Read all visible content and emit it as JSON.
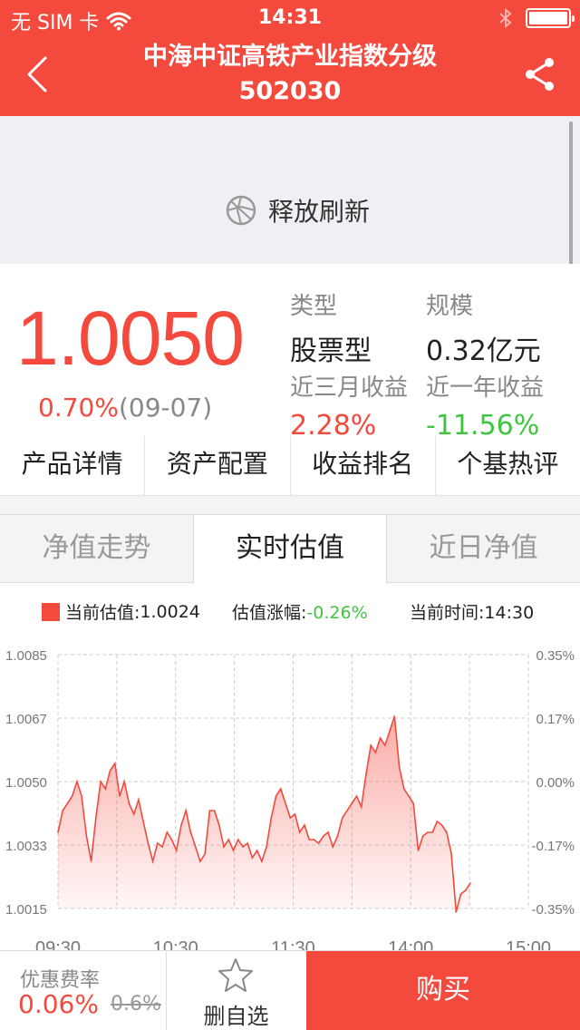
{
  "status_bar": {
    "carrier": "无 SIM 卡",
    "time": "14:31",
    "wifi_icon": "wifi-icon",
    "bluetooth_icon": "bluetooth-icon",
    "battery_icon": "battery-icon"
  },
  "nav": {
    "title": "中海中证高铁产业指数分级",
    "code": "502030",
    "back_icon": "chevron-left-icon",
    "share_icon": "share-icon"
  },
  "refresh": {
    "label": "释放刷新",
    "icon": "refresh-spinner-icon"
  },
  "summary": {
    "nav_value": "1.0050",
    "change_pct": "0.70%",
    "change_date": "(09-07)",
    "type_label": "类型",
    "type_value": "股票型",
    "scale_label": "规模",
    "scale_value": "0.32亿元",
    "three_month_label": "近三月收益",
    "three_month_value": "2.28%",
    "one_year_label": "近一年收益",
    "one_year_value": "-11.56%"
  },
  "links": [
    "产品详情",
    "资产配置",
    "收益排名",
    "个基热评"
  ],
  "chart_tabs": [
    "净值走势",
    "实时估值",
    "近日净值"
  ],
  "chart_legend": {
    "estimate_label": "当前估值:",
    "estimate_value": "1.0024",
    "change_label": "估值涨幅:",
    "change_value": "-0.26%",
    "time_label": "当前时间:",
    "time_value": "14:30"
  },
  "chart_data": {
    "type": "area",
    "title": "",
    "xlabel": "",
    "ylabel": "",
    "x_ticks": [
      "09:30",
      "10:30",
      "11:30",
      "14:00",
      "15:00"
    ],
    "y_ticks": [
      "1.0085",
      "1.0067",
      "1.0050",
      "1.0033",
      "1.0015"
    ],
    "y_right_ticks": [
      "0.35%",
      "0.17%",
      "0.00%",
      "-0.17%",
      "-0.35%"
    ],
    "ylim": [
      1.0015,
      1.0085
    ],
    "color": "#f4493d",
    "grid": true,
    "series": [
      {
        "values": [
          1.0036,
          1.0042,
          1.0044,
          1.0046,
          1.005,
          1.0046,
          1.0035,
          1.0028,
          1.004,
          1.005,
          1.0048,
          1.0053,
          1.0055,
          1.0046,
          1.005,
          1.0044,
          1.0041,
          1.0045,
          1.0039,
          1.0033,
          1.0028,
          1.0033,
          1.0032,
          1.0036,
          1.0034,
          1.0031,
          1.0038,
          1.0042,
          1.0036,
          1.0032,
          1.0028,
          1.003,
          1.0042,
          1.0042,
          1.0038,
          1.0032,
          1.0034,
          1.0031,
          1.0034,
          1.0032,
          1.0033,
          1.0029,
          1.0031,
          1.0028,
          1.0032,
          1.004,
          1.0046,
          1.0048,
          1.0044,
          1.004,
          1.0041,
          1.0036,
          1.0038,
          1.0034,
          1.0034,
          1.0033,
          1.0035,
          1.0036,
          1.0032,
          1.0035,
          1.004,
          1.0042,
          1.0044,
          1.0046,
          1.0043,
          1.0052,
          1.006,
          1.0058,
          1.0062,
          1.006,
          1.0064,
          1.0068,
          1.0054,
          1.0048,
          1.0046,
          1.0044,
          1.0031,
          1.0035,
          1.0036,
          1.0036,
          1.0039,
          1.0038,
          1.0036,
          1.003,
          1.0014,
          1.0019,
          1.002,
          1.0022
        ]
      }
    ]
  },
  "bottom": {
    "fee_label": "优惠费率",
    "fee_value": "0.06%",
    "fee_original": "0.6%",
    "fav_label": "删自选",
    "fav_icon": "star-icon",
    "buy_label": "购买"
  }
}
